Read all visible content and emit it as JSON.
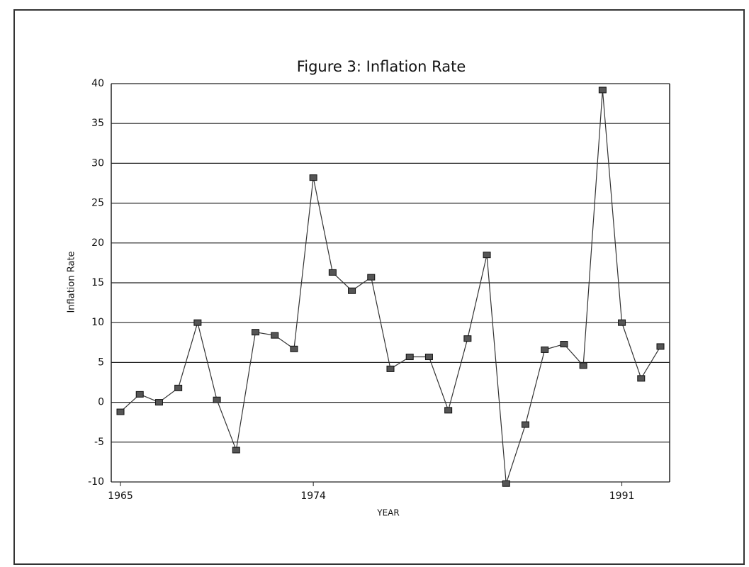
{
  "chart_data": {
    "type": "line",
    "title": "Figure 3: Inflation Rate",
    "x_label": "YEAR",
    "y_label": "Inflation Rate",
    "categories": [
      "1965",
      null,
      null,
      null,
      null,
      null,
      null,
      null,
      null,
      null,
      "1974",
      null,
      null,
      null,
      null,
      null,
      null,
      null,
      null,
      null,
      null,
      null,
      null,
      null,
      null,
      null,
      "1991",
      null,
      null
    ],
    "series": [
      {
        "name": "Inflation Rate",
        "color": "#333333",
        "values": [
          -1.2,
          1,
          0,
          1.8,
          10,
          0.3,
          -6,
          8.8,
          8.4,
          6.7,
          28.2,
          16.3,
          14,
          15.7,
          4.2,
          5.7,
          5.7,
          -1,
          8,
          18.5,
          -10.2,
          -2.8,
          6.6,
          7.3,
          4.6,
          39.2,
          10,
          3,
          7
        ]
      }
    ],
    "ylim": [
      -10,
      40
    ],
    "yticks": [
      -10,
      -5,
      0,
      5,
      10,
      15,
      20,
      25,
      30,
      35,
      40
    ],
    "grid": true
  }
}
